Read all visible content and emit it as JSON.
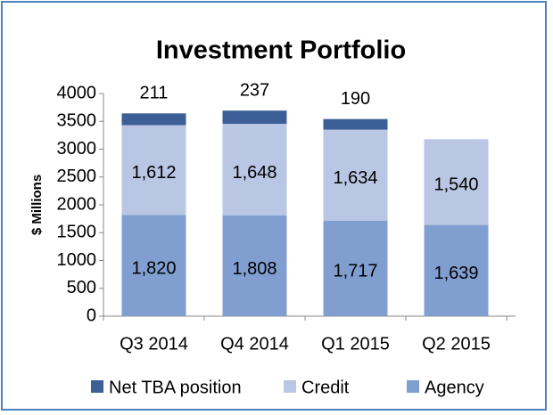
{
  "chart_data": {
    "type": "stacked_bar",
    "title": "Investment Portfolio",
    "y_label": "$ Millions",
    "categories": [
      "Q3 2014",
      "Q4 2014",
      "Q1 2015",
      "Q2 2015"
    ],
    "series": [
      {
        "name": "Net TBA position",
        "color": "#3b5f96",
        "values": [
          211,
          237,
          190,
          null
        ],
        "value_labels": [
          "211",
          "237",
          "190",
          null
        ]
      },
      {
        "name": "Credit",
        "color": "#b9c6e4",
        "values": [
          1612,
          1648,
          1634,
          1540
        ],
        "value_labels": [
          "1,612",
          "1,648",
          "1,634",
          "1,540"
        ]
      },
      {
        "name": "Agency",
        "color": "#809fd0",
        "values": [
          1820,
          1808,
          1717,
          1639
        ],
        "value_labels": [
          "1,820",
          "1,808",
          "1,717",
          "1,639"
        ]
      }
    ],
    "ylim": [
      0,
      4000
    ],
    "yticks": [
      0,
      500,
      1000,
      1500,
      2000,
      2500,
      3000,
      3500,
      4000
    ]
  }
}
